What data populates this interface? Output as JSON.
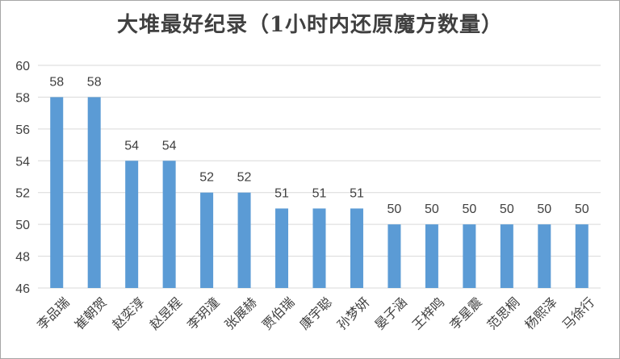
{
  "chart_data": {
    "type": "bar",
    "title": "大堆最好纪录（1小时内还原魔方数量）",
    "xlabel": "",
    "ylabel": "",
    "categories": [
      "李品瑞",
      "崔朝贺",
      "赵奕淳",
      "赵昱程",
      "李玥潼",
      "张展赫",
      "贾伯瑞",
      "康宇聪",
      "孙梦妍",
      "晏子涵",
      "王梓鸣",
      "李星震",
      "范思桐",
      "杨熙泽",
      "马徐行"
    ],
    "values": [
      58,
      58,
      54,
      54,
      52,
      52,
      51,
      51,
      51,
      50,
      50,
      50,
      50,
      50,
      50
    ],
    "ylim": [
      46,
      60
    ],
    "yticks": [
      46,
      48,
      50,
      52,
      54,
      56,
      58,
      60
    ],
    "grid": true,
    "legend": "none",
    "bar_color": "#5b9bd5"
  }
}
